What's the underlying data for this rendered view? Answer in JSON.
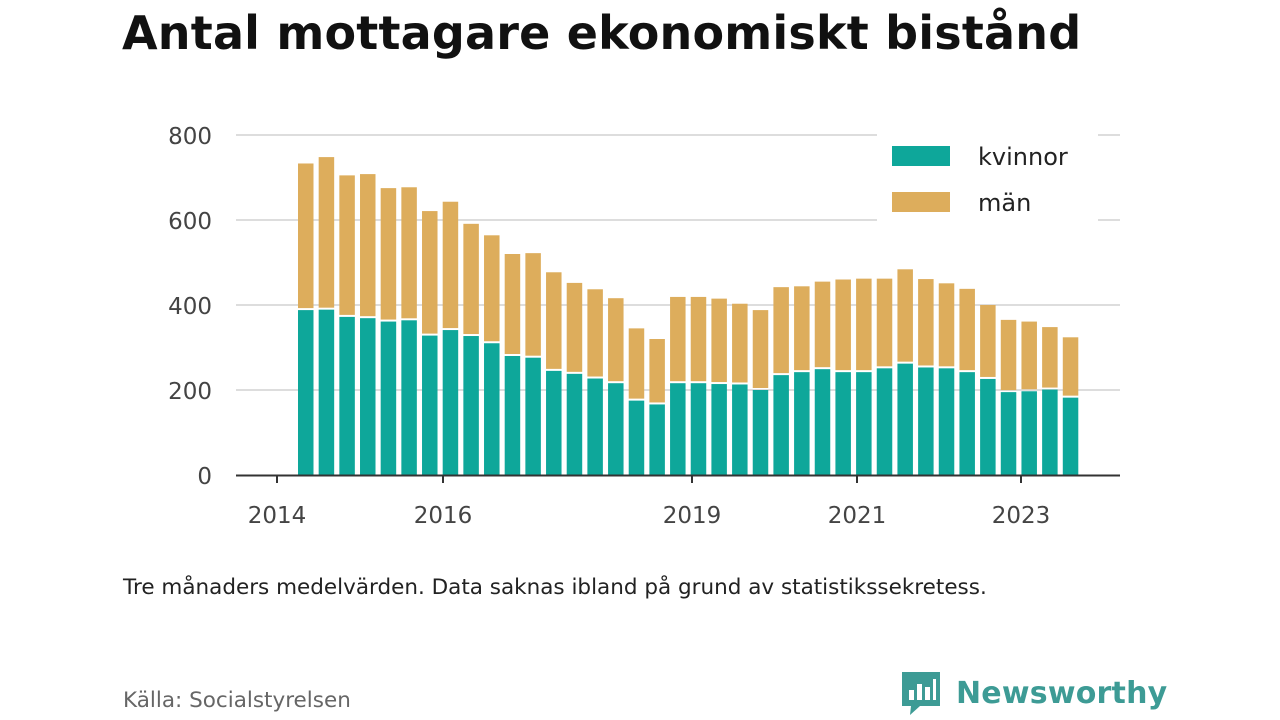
{
  "title": "Antal mottagare ekonomiskt bistånd",
  "note": "Tre månaders medelvärden. Data saknas ibland på grund av statistikssekretess.",
  "source": "Källa: Socialstyrelsen",
  "brand": {
    "name": "Newsworthy",
    "icon": "newsworthy-logo-icon",
    "color": "#3d9b95"
  },
  "colors": {
    "kvinnor": "#0ea79a",
    "man": "#ddad5c",
    "grid": "#dddddd",
    "axis": "#333333"
  },
  "chart_data": {
    "type": "bar",
    "stacked": true,
    "x_ticks": [
      "2014",
      "2016",
      "2019",
      "2021",
      "2023"
    ],
    "y_ticks": [
      "0",
      "200",
      "400",
      "600",
      "800"
    ],
    "ylim": [
      0,
      800
    ],
    "grid": true,
    "legend_position": "top-right",
    "series": [
      {
        "name": "kvinnor",
        "values": [
          388,
          389,
          372,
          369,
          361,
          364,
          328,
          341,
          327,
          310,
          280,
          276,
          245,
          238,
          227,
          216,
          175,
          166,
          216,
          216,
          214,
          213,
          200,
          235,
          242,
          249,
          242,
          242,
          251,
          262,
          253,
          251,
          242,
          226,
          195,
          197,
          201,
          182
        ]
      },
      {
        "name": "män",
        "values": [
          345,
          359,
          333,
          339,
          314,
          313,
          293,
          302,
          264,
          254,
          240,
          246,
          232,
          214,
          210,
          200,
          170,
          154,
          203,
          203,
          201,
          190,
          188,
          207,
          202,
          206,
          218,
          220,
          211,
          222,
          208,
          200,
          196,
          174,
          170,
          164,
          147,
          142
        ]
      }
    ]
  }
}
